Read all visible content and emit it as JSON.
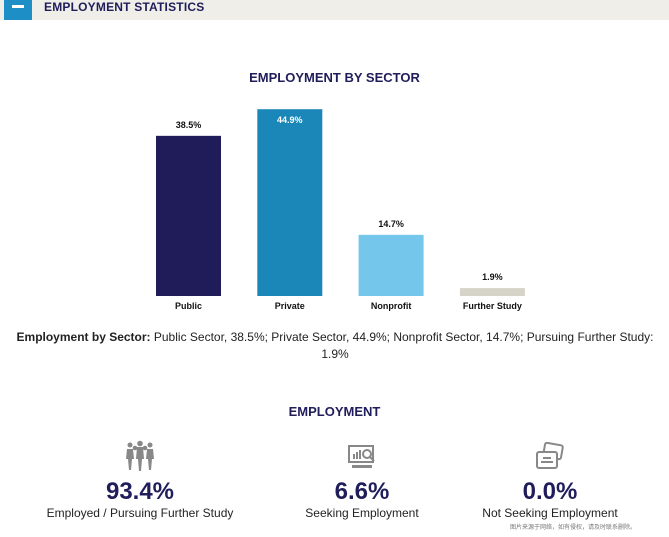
{
  "section": {
    "title": "EMPLOYMENT STATISTICS"
  },
  "chart_data": {
    "type": "bar",
    "title": "EMPLOYMENT BY SECTOR",
    "categories": [
      "Public",
      "Private",
      "Nonprofit",
      "Further Study"
    ],
    "values": [
      38.5,
      44.9,
      14.7,
      1.9
    ],
    "value_labels": [
      "38.5%",
      "44.9%",
      "14.7%",
      "1.9%"
    ],
    "colors": [
      "#201c5a",
      "#1a87b8",
      "#74c6ea",
      "#d6d4c8"
    ],
    "ylim": [
      0,
      50
    ],
    "grid": false
  },
  "description": {
    "label": "Employment by Sector:",
    "text": " Public Sector, 38.5%; Private Sector, 44.9%; Nonprofit Sector, 14.7%; Pursuing Further Study: 1.9%"
  },
  "employment": {
    "title": "EMPLOYMENT",
    "stats": [
      {
        "icon": "people-group-icon",
        "value": "93.4%",
        "label": "Employed / Pursuing Further Study"
      },
      {
        "icon": "monitor-search-icon",
        "value": "6.6%",
        "label": "Seeking Employment"
      },
      {
        "icon": "cards-icon",
        "value": "0.0%",
        "label": "Not Seeking Employment"
      }
    ]
  },
  "watermark": "图片来源于网络，如有侵权，请及时联系删除。"
}
